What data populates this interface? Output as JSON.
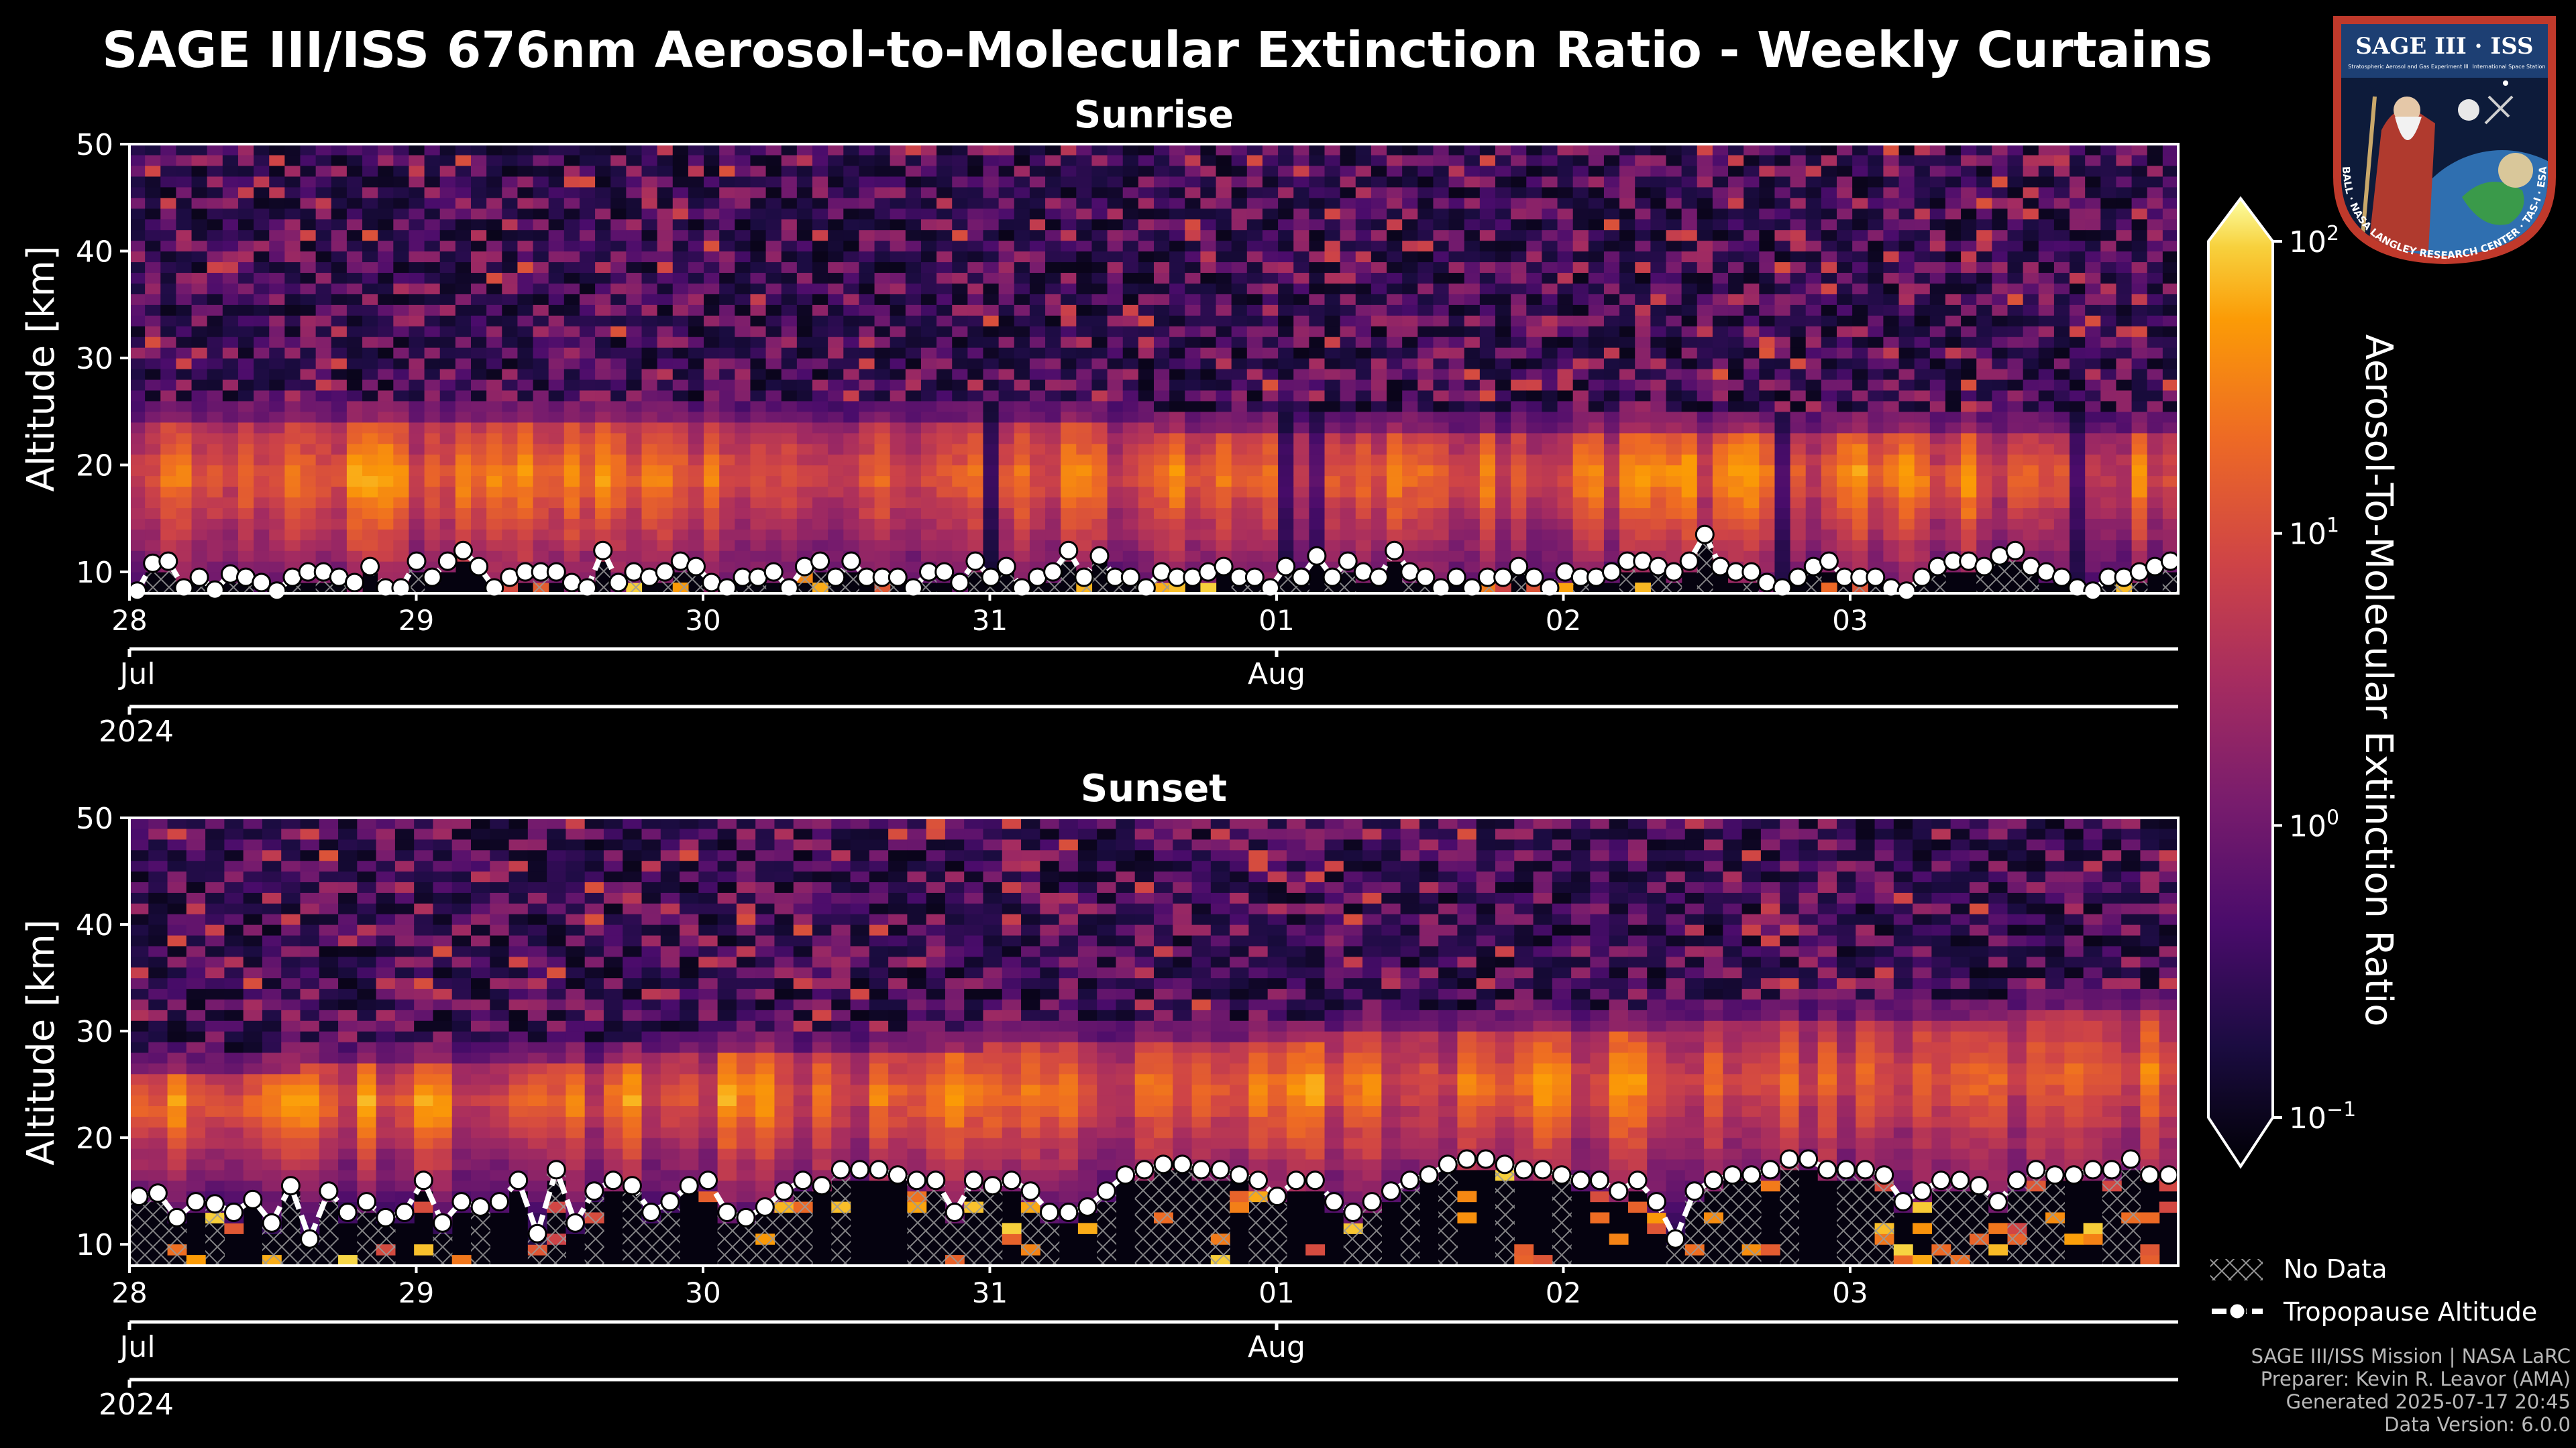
{
  "figure": {
    "title": "SAGE III/ISS 676nm Aerosol-to-Molecular Extinction Ratio - Weekly Curtains",
    "colors": {
      "background": "#000000",
      "text": "#ffffff",
      "axis": "#ffffff",
      "credits": "#b8b8b8",
      "hatch": "#9a9a9a"
    }
  },
  "logo": {
    "text_top": "SAGE III · ISS",
    "text_sub": "Stratospheric Aerosol and Gas Experiment III",
    "text_iss": "International Space Station",
    "text_ring": "BALL · NASA LANGLEY RESEARCH CENTER · TAS-I · ESA",
    "colors": {
      "ring": "#c0392b",
      "inner": "#1d3f73",
      "banner": "#1d3f73"
    }
  },
  "chart_data": [
    {
      "type": "heatmap",
      "title": "Sunrise",
      "ylabel": "Altitude [km]",
      "ylim": [
        8,
        50
      ],
      "yticks": [
        10,
        20,
        30,
        40,
        50
      ],
      "xlim_days": [
        0,
        7.1
      ],
      "xticks": [
        {
          "day": 0,
          "label": "28"
        },
        {
          "day": 1,
          "label": "29"
        },
        {
          "day": 2,
          "label": "30"
        },
        {
          "day": 3,
          "label": "31"
        },
        {
          "day": 4,
          "label": "01"
        },
        {
          "day": 5,
          "label": "02"
        },
        {
          "day": 6,
          "label": "03"
        }
      ],
      "month_ticks": [
        {
          "day": 0,
          "label": "Jul"
        },
        {
          "day": 4,
          "label": "Aug"
        }
      ],
      "year_ticks": [
        {
          "day": 0,
          "label": "2024"
        }
      ],
      "layer": {
        "base_km": [
          26,
          25
        ],
        "core_km": 19,
        "core_ratio": 3.5
      },
      "tropopause_km": [
        8.0,
        10.8,
        11.0,
        8.5,
        9.5,
        8.3,
        9.8,
        9.5,
        9.0,
        8.0,
        9.5,
        10.0,
        10.0,
        9.5,
        9.0,
        10.5,
        8.5,
        8.5,
        11.0,
        9.5,
        11.0,
        12.0,
        10.5,
        8.5,
        9.5,
        10.0,
        10.0,
        10.0,
        9.0,
        8.5,
        12.0,
        9.0,
        10.0,
        9.5,
        10.0,
        11.0,
        10.5,
        9.0,
        8.5,
        9.5,
        9.5,
        10.0,
        8.5,
        10.5,
        11.0,
        9.5,
        11.0,
        9.5,
        9.5,
        9.5,
        8.5,
        10.0,
        10.0,
        9.0,
        11.0,
        9.5,
        10.5,
        8.5,
        9.5,
        10.0,
        12.0,
        9.5,
        11.5,
        9.5,
        9.5,
        8.5,
        10.0,
        9.5,
        9.5,
        10.0,
        10.5,
        9.5,
        9.5,
        8.5,
        10.5,
        9.5,
        11.5,
        9.5,
        11.0,
        10.0,
        9.5,
        12.0,
        10.0,
        9.5,
        8.5,
        9.5,
        8.5,
        9.5,
        9.5,
        10.5,
        9.5,
        8.5,
        10.0,
        9.5,
        9.5,
        10.0,
        11.0,
        11.0,
        10.5,
        10.0,
        11.0,
        13.5,
        10.5,
        10.0,
        10.0,
        9.0,
        8.5,
        9.5,
        10.5,
        11.0,
        9.5,
        9.5,
        9.5,
        8.5,
        8.0,
        9.5,
        10.5,
        11.0,
        11.0,
        10.5,
        11.5,
        12.0,
        10.5,
        10.0,
        9.5,
        8.5,
        8.0,
        9.5,
        9.5,
        10.0,
        10.5,
        11.0
      ]
    },
    {
      "type": "heatmap",
      "title": "Sunset",
      "ylabel": "Altitude [km]",
      "ylim": [
        8,
        50
      ],
      "yticks": [
        10,
        20,
        30,
        40,
        50
      ],
      "xlim_days": [
        0,
        7.1
      ],
      "xticks": [
        {
          "day": 0,
          "label": "28"
        },
        {
          "day": 1,
          "label": "29"
        },
        {
          "day": 2,
          "label": "30"
        },
        {
          "day": 3,
          "label": "31"
        },
        {
          "day": 4,
          "label": "01"
        },
        {
          "day": 5,
          "label": "02"
        },
        {
          "day": 6,
          "label": "03"
        }
      ],
      "month_ticks": [
        {
          "day": 0,
          "label": "Jul"
        },
        {
          "day": 4,
          "label": "Aug"
        }
      ],
      "year_ticks": [
        {
          "day": 0,
          "label": "2024"
        }
      ],
      "layer": {
        "base_km": [
          28,
          34
        ],
        "core_km": 23,
        "core_ratio": 3.0
      },
      "tropopause_km": [
        14.5,
        14.8,
        12.5,
        14.0,
        13.8,
        13.0,
        14.2,
        12.0,
        15.5,
        10.5,
        15.0,
        13.0,
        14.0,
        12.5,
        13.0,
        16.0,
        12.0,
        14.0,
        13.5,
        14.0,
        16.0,
        11.0,
        17.0,
        12.0,
        15.0,
        16.0,
        15.5,
        13.0,
        14.0,
        15.5,
        16.0,
        13.0,
        12.5,
        13.5,
        15.0,
        16.0,
        15.5,
        17.0,
        17.0,
        17.0,
        16.5,
        16.0,
        16.0,
        13.0,
        16.0,
        15.5,
        16.0,
        15.0,
        13.0,
        13.0,
        13.5,
        15.0,
        16.5,
        17.0,
        17.5,
        17.5,
        17.0,
        17.0,
        16.5,
        16.0,
        14.5,
        16.0,
        16.0,
        14.0,
        13.0,
        14.0,
        15.0,
        16.0,
        16.5,
        17.5,
        18.0,
        18.0,
        17.5,
        17.0,
        17.0,
        16.5,
        16.0,
        16.0,
        15.0,
        16.0,
        14.0,
        10.5,
        15.0,
        16.0,
        16.5,
        16.5,
        17.0,
        18.0,
        18.0,
        17.0,
        17.0,
        17.0,
        16.5,
        14.0,
        15.0,
        16.0,
        16.0,
        15.5,
        14.0,
        16.0,
        17.0,
        16.5,
        16.5,
        17.0,
        17.0,
        18.0,
        16.5,
        16.5
      ]
    }
  ],
  "colorbar": {
    "label": "Aerosol-To-Molecular Extinction Ratio",
    "scale": "log",
    "range": [
      0.1,
      100
    ],
    "ticks": [
      {
        "base": "10",
        "exp": "2"
      },
      {
        "base": "10",
        "exp": "1"
      },
      {
        "base": "10",
        "exp": "0"
      },
      {
        "base": "10",
        "exp": "−1"
      }
    ],
    "colormap": "inferno"
  },
  "legend": {
    "no_data": "No Data",
    "tropopause": "Tropopause Altitude"
  },
  "credits": {
    "line1": "SAGE III/ISS Mission | NASA LaRC",
    "line2": "Preparer: Kevin R. Leavor (AMA)",
    "line3": "Generated 2025-07-17 20:45",
    "line4": "Data Version: 6.0.0"
  }
}
